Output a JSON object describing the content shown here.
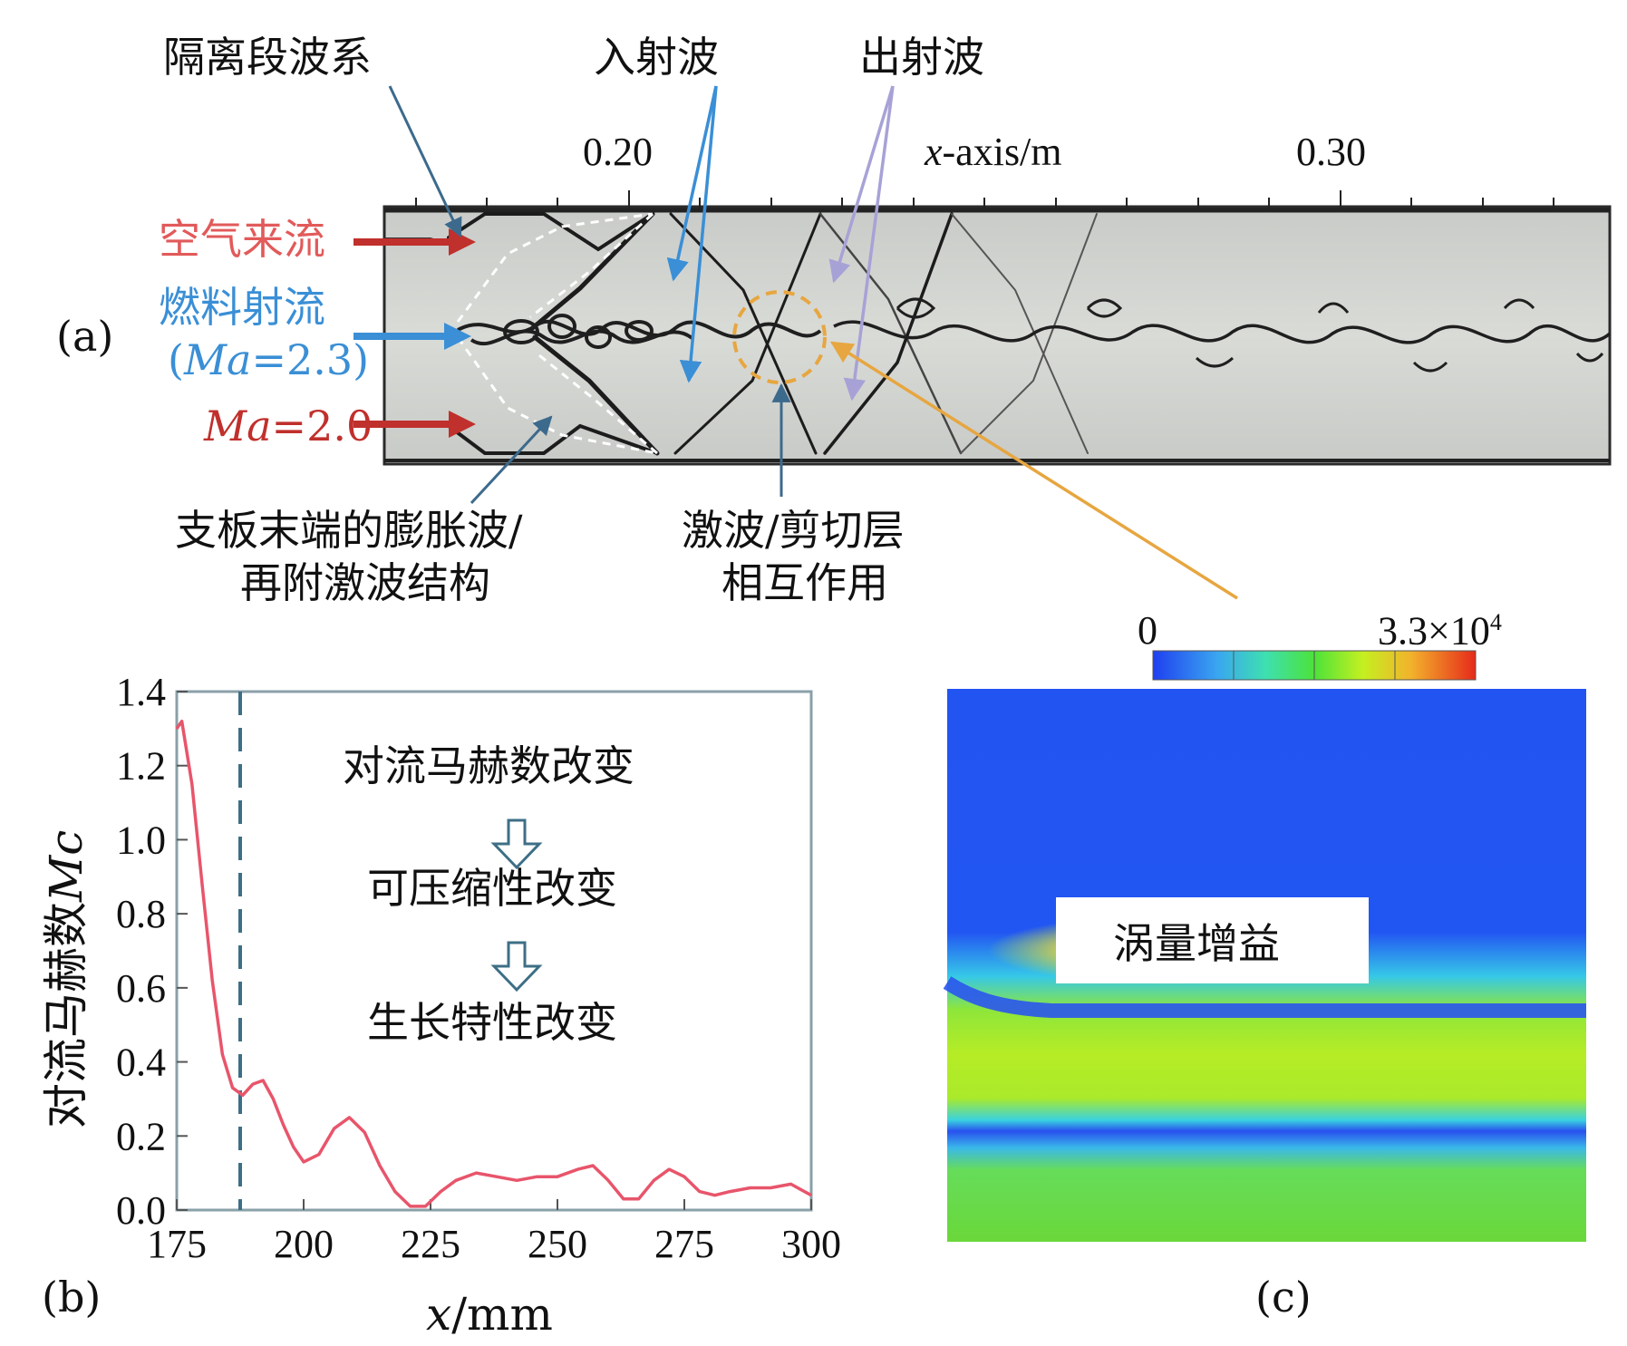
{
  "panel_a": {
    "panel_label": "(a)",
    "axis_title_var": "x",
    "axis_title_rest": "-axis/m",
    "tick_labels": [
      "0.20",
      "0.30"
    ],
    "inlet_air": "空气来流",
    "inlet_fuel": "燃料射流",
    "inlet_fuel_mach_open": "(",
    "inlet_fuel_mach_var": "Ma",
    "inlet_fuel_mach_val": "=2.3)",
    "inlet_air_mach_var": "Ma",
    "inlet_air_mach_val": "=2.0",
    "annotation_isolator": "隔离段波系",
    "annotation_incident": "入射波",
    "annotation_reflected": "出射波",
    "annotation_expansion_line1": "支板末端的膨胀波/",
    "annotation_expansion_line2": "再附激波结构",
    "annotation_interaction_line1": "激波/剪切层",
    "annotation_interaction_line2": "相互作用",
    "colors": {
      "air": "#c0302c",
      "fuel": "#3a8fd6",
      "leader": "#3c6a8c",
      "lavender": "#a7a2d6",
      "orange": "#e7a640"
    }
  },
  "panel_b": {
    "panel_label": "(b)",
    "ylabel": "对流马赫数",
    "ylabel_var": "Mc",
    "xlabel_var": "x",
    "xlabel_rest": "/mm",
    "inset_line1": "对流马赫数改变",
    "inset_line2": "可压缩性改变",
    "inset_line3": "生长特性改变",
    "chart_data": {
      "type": "line",
      "x_ticks": [
        175,
        200,
        225,
        250,
        275,
        300
      ],
      "y_ticks": [
        "0.0",
        "0.2",
        "0.4",
        "0.6",
        "0.8",
        "1.0",
        "1.2",
        "1.4"
      ],
      "xlim": [
        175,
        300
      ],
      "ylim": [
        0,
        1.4
      ],
      "vline_x": 187.5,
      "series": [
        {
          "color": "#e8556b",
          "x": [
            175,
            176,
            178,
            180,
            182,
            184,
            186,
            188,
            190,
            192,
            194,
            196,
            198,
            200,
            203,
            206,
            209,
            212,
            215,
            218,
            221,
            224,
            227,
            230,
            234,
            238,
            242,
            246,
            250,
            254,
            257,
            260,
            263,
            266,
            269,
            272,
            275,
            278,
            281,
            284,
            288,
            292,
            296,
            300
          ],
          "y": [
            1.3,
            1.32,
            1.15,
            0.88,
            0.62,
            0.42,
            0.33,
            0.31,
            0.34,
            0.35,
            0.3,
            0.23,
            0.17,
            0.13,
            0.15,
            0.22,
            0.25,
            0.21,
            0.12,
            0.05,
            0.01,
            0.01,
            0.05,
            0.08,
            0.1,
            0.09,
            0.08,
            0.09,
            0.09,
            0.11,
            0.12,
            0.08,
            0.03,
            0.03,
            0.08,
            0.11,
            0.09,
            0.05,
            0.04,
            0.05,
            0.06,
            0.06,
            0.07,
            0.04
          ]
        }
      ]
    }
  },
  "panel_c": {
    "panel_label": "(c)",
    "colorbar_min": "0",
    "colorbar_max": "3.3×10",
    "colorbar_max_exp": "4",
    "region_label": "涡量增益"
  }
}
